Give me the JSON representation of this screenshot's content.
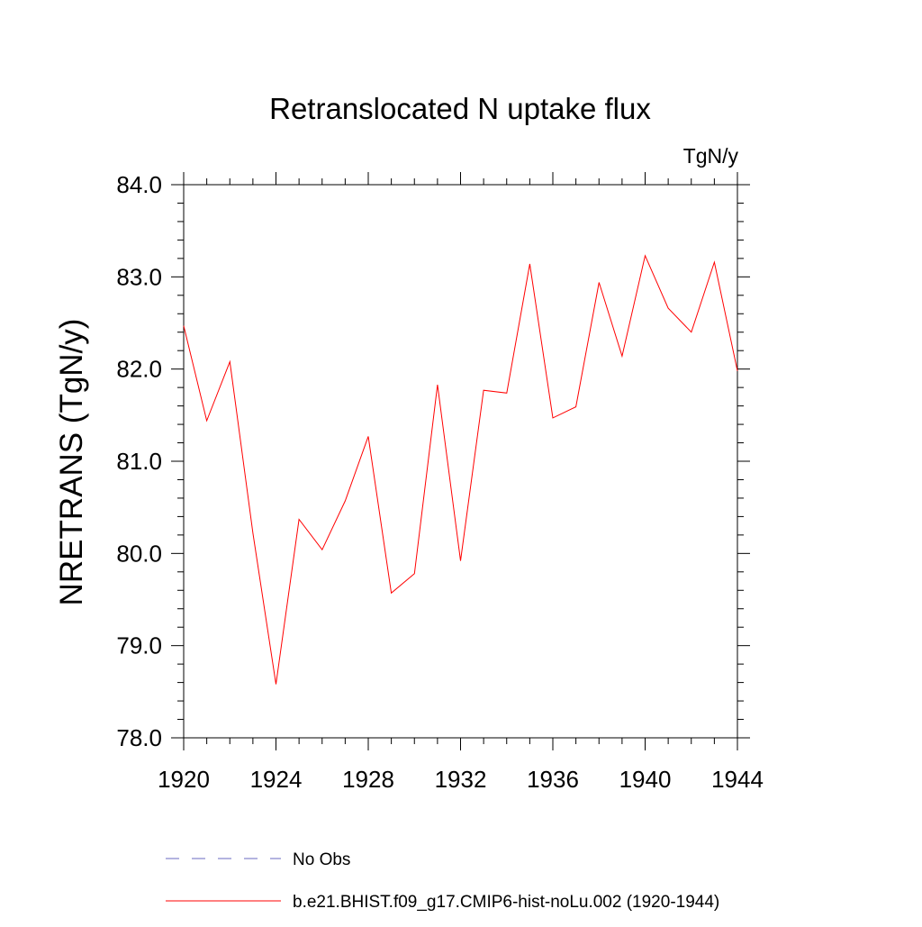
{
  "chart_data": {
    "type": "line",
    "title": "Retranslocated N uptake flux",
    "units": "TgN/y",
    "ylabel": "NRETRANS  (TgN/y)",
    "xlabel": "",
    "xlim": [
      1920,
      1944
    ],
    "ylim": [
      78.0,
      84.0
    ],
    "x_ticks": [
      "1920",
      "1924",
      "1928",
      "1932",
      "1936",
      "1940",
      "1944"
    ],
    "y_ticks": [
      "78.0",
      "79.0",
      "80.0",
      "81.0",
      "82.0",
      "83.0",
      "84.0"
    ],
    "grid": false,
    "legend_position": "bottom",
    "series": [
      {
        "name": "b.e21.BHIST.f09_g17.CMIP6-hist-noLu.002 (1920-1944)",
        "color": "#ff0000",
        "style": "solid",
        "x": [
          1920,
          1921,
          1922,
          1923,
          1924,
          1925,
          1926,
          1927,
          1928,
          1929,
          1930,
          1931,
          1932,
          1933,
          1934,
          1935,
          1936,
          1937,
          1938,
          1939,
          1940,
          1941,
          1942,
          1943,
          1944
        ],
        "y": [
          82.47,
          81.44,
          82.08,
          80.22,
          78.58,
          80.37,
          80.04,
          80.57,
          81.27,
          79.57,
          79.78,
          81.83,
          79.92,
          81.77,
          81.74,
          83.14,
          81.47,
          81.59,
          82.94,
          82.14,
          83.23,
          82.66,
          82.4,
          83.16,
          81.98
        ]
      }
    ],
    "legend": [
      {
        "label": "No Obs",
        "color": "#6a6ac0",
        "style": "dashed"
      },
      {
        "label": "b.e21.BHIST.f09_g17.CMIP6-hist-noLu.002 (1920-1944)",
        "color": "#ff0000",
        "style": "solid"
      }
    ]
  }
}
